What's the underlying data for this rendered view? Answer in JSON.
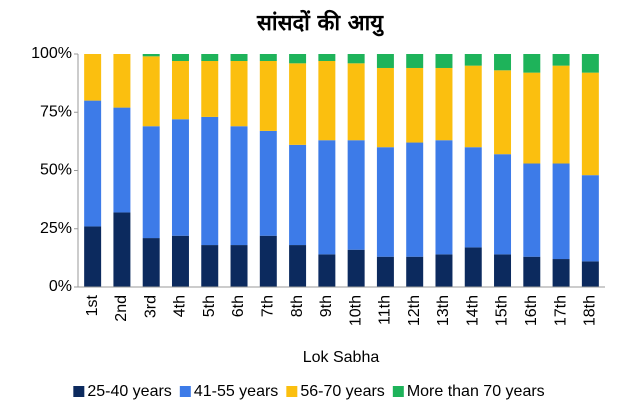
{
  "chart_data": {
    "type": "bar",
    "stacked": true,
    "title": "सांसदों की आयु",
    "x_label": "Lok Sabha",
    "categories": [
      "1st",
      "2nd",
      "3rd",
      "4th",
      "5th",
      "6th",
      "7th",
      "8th",
      "9th",
      "10th",
      "11th",
      "12th",
      "13th",
      "14th",
      "15th",
      "16th",
      "17th",
      "18th"
    ],
    "series": [
      {
        "name": "25-40 years",
        "color": "#0c2a5e",
        "values": [
          26,
          32,
          21,
          22,
          18,
          18,
          22,
          18,
          14,
          16,
          13,
          13,
          14,
          17,
          14,
          13,
          12,
          11
        ]
      },
      {
        "name": "41-55 years",
        "color": "#3d7be8",
        "values": [
          54,
          45,
          48,
          50,
          55,
          51,
          45,
          43,
          49,
          47,
          47,
          49,
          49,
          43,
          43,
          40,
          41,
          37
        ]
      },
      {
        "name": "56-70 years",
        "color": "#fbbf0f",
        "values": [
          20,
          23,
          30,
          25,
          24,
          28,
          30,
          35,
          34,
          33,
          34,
          32,
          31,
          35,
          36,
          39,
          42,
          44
        ]
      },
      {
        "name": "More than 70 years",
        "color": "#1eb35a",
        "values": [
          0,
          0,
          1,
          3,
          3,
          3,
          3,
          4,
          3,
          4,
          6,
          6,
          6,
          5,
          7,
          8,
          5,
          8
        ]
      }
    ],
    "ylim": [
      0,
      100
    ],
    "yticks": [
      {
        "value": 0,
        "label": "0%"
      },
      {
        "value": 25,
        "label": "25%"
      },
      {
        "value": 50,
        "label": "50%"
      },
      {
        "value": 75,
        "label": "75%"
      },
      {
        "value": 100,
        "label": "100%"
      }
    ],
    "legend": "bottom"
  }
}
